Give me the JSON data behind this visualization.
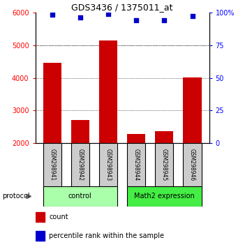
{
  "title": "GDS3436 / 1375011_at",
  "samples": [
    "GSM298941",
    "GSM298942",
    "GSM298943",
    "GSM298944",
    "GSM298945",
    "GSM298946"
  ],
  "counts": [
    4450,
    2700,
    5150,
    2280,
    2360,
    4020
  ],
  "percentile_ranks": [
    98,
    96,
    99,
    94,
    94,
    97
  ],
  "ylim_left": [
    2000,
    6000
  ],
  "ylim_right": [
    0,
    100
  ],
  "yticks_left": [
    2000,
    3000,
    4000,
    5000,
    6000
  ],
  "yticks_right": [
    0,
    25,
    50,
    75,
    100
  ],
  "ytick_labels_right": [
    "0",
    "25",
    "50",
    "75",
    "100%"
  ],
  "bar_color": "#cc0000",
  "marker_color": "#0000cc",
  "bar_width": 0.65,
  "groups": [
    {
      "label": "control",
      "indices": [
        0,
        1,
        2
      ],
      "color": "#aaffaa"
    },
    {
      "label": "Math2 expression",
      "indices": [
        3,
        4,
        5
      ],
      "color": "#44ee44"
    }
  ],
  "legend_count_label": "count",
  "legend_pct_label": "percentile rank within the sample",
  "protocol_label": "protocol",
  "sample_box_color": "#cccccc",
  "background_color": "#ffffff"
}
